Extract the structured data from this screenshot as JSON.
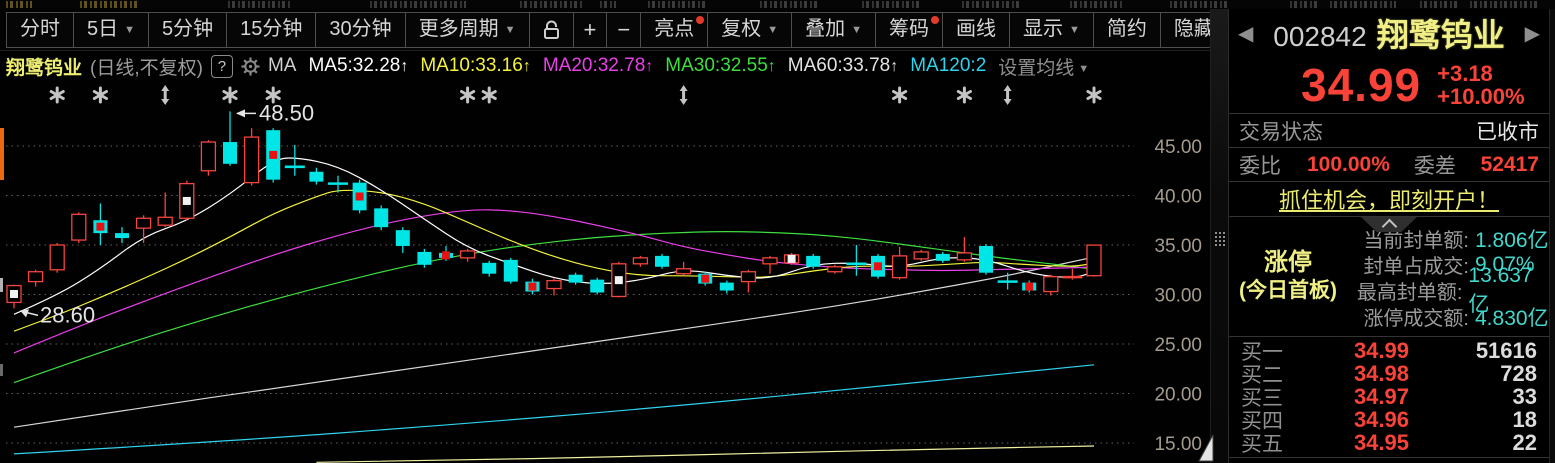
{
  "toolbar": {
    "buttons": [
      {
        "name": "intraday-button",
        "label": "分时"
      },
      {
        "name": "five-day-button",
        "label": "5日",
        "caret": true
      },
      {
        "name": "five-minute-button",
        "label": "5分钟"
      },
      {
        "name": "fifteen-minute-button",
        "label": "15分钟"
      },
      {
        "name": "thirty-minute-button",
        "label": "30分钟"
      },
      {
        "name": "more-periods-button",
        "label": "更多周期",
        "caret": true
      },
      {
        "gap": true
      },
      {
        "name": "lock-button",
        "icon": "lock"
      },
      {
        "name": "zoom-in-button",
        "label": "+",
        "sq": true
      },
      {
        "name": "zoom-out-button",
        "label": "−",
        "sq": true
      },
      {
        "name": "highlights-button",
        "label": "亮点",
        "dot": true
      },
      {
        "name": "adjust-price-button",
        "label": "复权",
        "caret": true
      },
      {
        "name": "overlay-button",
        "label": "叠加",
        "caret": true
      },
      {
        "name": "chip-distribution-button",
        "label": "筹码",
        "dot": true
      },
      {
        "name": "draw-line-button",
        "label": "画线"
      },
      {
        "name": "display-button",
        "label": "显示",
        "caret": true
      },
      {
        "name": "simple-mode-button",
        "label": "简约"
      },
      {
        "name": "hide-button",
        "label": "隐藏",
        "suffix": "▶▶"
      },
      {
        "name": "fullscreen-button",
        "icon": "fullscreen"
      }
    ]
  },
  "legend": {
    "stock": "翔鹭钨业",
    "mode": "(日线,不复权)",
    "help": "?",
    "ma_tag": "MA",
    "items": [
      {
        "name": "legend-ma5",
        "label": "MA5:32.28",
        "color": "#ffffff",
        "arrow": "↑"
      },
      {
        "name": "legend-ma10",
        "label": "MA10:33.16",
        "color": "#f3f33e",
        "arrow": "↑"
      },
      {
        "name": "legend-ma20",
        "label": "MA20:32.78",
        "color": "#e93fe9",
        "arrow": "↑"
      },
      {
        "name": "legend-ma30",
        "label": "MA30:32.55",
        "color": "#3ede3e",
        "arrow": "↑"
      },
      {
        "name": "legend-ma60",
        "label": "MA60:33.78",
        "color": "#e3e3e3",
        "arrow": "↑"
      },
      {
        "name": "legend-ma120",
        "label": "MA120:2",
        "color": "#2ed3ee",
        "arrow": ""
      }
    ],
    "settings": "设置均线"
  },
  "chart_data": {
    "type": "candlestick",
    "title": "翔鹭钨业 日线 (不复权)",
    "ylim": [
      12.5,
      50
    ],
    "y_ticks": [
      45,
      40,
      35,
      30,
      25,
      20,
      15
    ],
    "grid": "dotted-horizontal",
    "high_annotation": {
      "index": 10,
      "price": 48.5,
      "label": "48.50"
    },
    "low_annotation": {
      "index": 0,
      "price": 28.6,
      "label": "28.60"
    },
    "event_markers": {
      "asterisk": [
        2,
        4,
        10,
        12,
        21,
        22,
        41,
        44,
        50
      ],
      "updown": [
        7,
        31,
        46
      ]
    },
    "colors": {
      "up": "#f5453d",
      "down": "#00e5e5",
      "marker_red": "#e81010",
      "marker_white": "#f2f2f2",
      "axis": "#a59c8f",
      "grid": "#616161",
      "events": "#c4c4c4"
    },
    "candles": [
      [
        29.2,
        30.9,
        31.0,
        28.6,
        "w"
      ],
      [
        31.3,
        32.3,
        32.5,
        30.8,
        ""
      ],
      [
        32.5,
        35.0,
        35.2,
        32.2,
        ""
      ],
      [
        35.5,
        38.1,
        38.3,
        35.2,
        ""
      ],
      [
        37.5,
        36.2,
        39.2,
        35.0,
        "r"
      ],
      [
        36.2,
        35.7,
        36.8,
        35.2,
        ""
      ],
      [
        36.7,
        37.7,
        38.0,
        35.2,
        ""
      ],
      [
        37.0,
        37.8,
        40.3,
        36.8,
        ""
      ],
      [
        37.7,
        41.2,
        41.5,
        37.5,
        "w"
      ],
      [
        42.5,
        45.4,
        45.6,
        42.0,
        ""
      ],
      [
        45.4,
        43.2,
        48.5,
        43.0,
        ""
      ],
      [
        41.3,
        45.9,
        46.8,
        41.0,
        ""
      ],
      [
        46.6,
        41.6,
        46.8,
        41.3,
        "r"
      ],
      [
        43.0,
        42.8,
        45.1,
        42.0,
        ""
      ],
      [
        42.4,
        41.4,
        42.8,
        41.1,
        ""
      ],
      [
        41.3,
        41.1,
        42.0,
        40.3,
        ""
      ],
      [
        41.3,
        38.5,
        41.6,
        38.2,
        "r"
      ],
      [
        38.7,
        36.8,
        39.0,
        36.5,
        ""
      ],
      [
        36.5,
        34.9,
        36.8,
        34.2,
        ""
      ],
      [
        34.3,
        33.0,
        34.6,
        32.7,
        ""
      ],
      [
        34.2,
        33.7,
        34.9,
        33.4,
        "r"
      ],
      [
        33.7,
        34.4,
        34.6,
        33.3,
        ""
      ],
      [
        33.2,
        32.1,
        33.4,
        31.8,
        ""
      ],
      [
        33.5,
        31.3,
        33.7,
        31.1,
        ""
      ],
      [
        31.3,
        30.3,
        31.6,
        30.0,
        "r"
      ],
      [
        30.6,
        31.4,
        31.6,
        29.9,
        ""
      ],
      [
        32.0,
        31.2,
        32.2,
        31.0,
        ""
      ],
      [
        31.5,
        30.2,
        31.7,
        30.0,
        ""
      ],
      [
        29.8,
        33.1,
        33.3,
        29.7,
        "w"
      ],
      [
        33.1,
        33.7,
        33.9,
        32.8,
        ""
      ],
      [
        33.9,
        32.8,
        34.1,
        32.6,
        ""
      ],
      [
        32.1,
        32.6,
        33.3,
        31.9,
        ""
      ],
      [
        32.1,
        31.1,
        32.3,
        30.9,
        "r"
      ],
      [
        31.2,
        30.4,
        31.4,
        30.1,
        ""
      ],
      [
        31.3,
        32.3,
        32.5,
        30.2,
        ""
      ],
      [
        33.1,
        33.7,
        33.9,
        32.1,
        ""
      ],
      [
        33.2,
        34.0,
        34.2,
        33.0,
        "w"
      ],
      [
        33.9,
        32.8,
        34.1,
        32.6,
        ""
      ],
      [
        32.3,
        32.8,
        33.0,
        32.1,
        ""
      ],
      [
        33.2,
        33.0,
        35.0,
        31.9,
        ""
      ],
      [
        33.9,
        31.8,
        34.1,
        31.6,
        "r"
      ],
      [
        31.7,
        33.9,
        34.8,
        31.5,
        ""
      ],
      [
        33.6,
        34.3,
        34.5,
        33.4,
        ""
      ],
      [
        34.1,
        33.4,
        34.3,
        33.2,
        ""
      ],
      [
        33.5,
        34.2,
        35.8,
        33.3,
        ""
      ],
      [
        34.9,
        32.2,
        35.1,
        32.0,
        ""
      ],
      [
        31.4,
        31.2,
        32.2,
        30.5,
        ""
      ],
      [
        31.2,
        30.4,
        31.4,
        30.2,
        "r"
      ],
      [
        30.3,
        31.8,
        32.0,
        29.9,
        ""
      ],
      [
        31.7,
        31.81,
        32.6,
        31.5,
        ""
      ],
      [
        31.9,
        34.99,
        34.99,
        31.8,
        ""
      ]
    ],
    "ma_lines": [
      {
        "name": "MA250",
        "color": "#f0f0a2",
        "points": [
          [
            14,
            13.05
          ],
          [
            20,
            13.25
          ],
          [
            28,
            13.6
          ],
          [
            35,
            14.0
          ],
          [
            43,
            14.4
          ],
          [
            50,
            14.7
          ]
        ]
      },
      {
        "name": "MA120",
        "color": "#2ed3ee",
        "points": [
          [
            0,
            13.9
          ],
          [
            10,
            15.2
          ],
          [
            20,
            16.8
          ],
          [
            30,
            18.6
          ],
          [
            40,
            20.7
          ],
          [
            50,
            22.9
          ]
        ]
      },
      {
        "name": "MA60",
        "color": "#d9d9d9",
        "points": [
          [
            0,
            16.6
          ],
          [
            6,
            18.6
          ],
          [
            12,
            20.5
          ],
          [
            18,
            22.4
          ],
          [
            24,
            24.3
          ],
          [
            30,
            26.2
          ],
          [
            34,
            27.5
          ],
          [
            38,
            28.8
          ],
          [
            42,
            30.3
          ],
          [
            46,
            31.9
          ],
          [
            50,
            33.78
          ]
        ]
      },
      {
        "name": "MA30",
        "color": "#3ede3e",
        "points": [
          [
            0,
            21.1
          ],
          [
            3,
            23.4
          ],
          [
            6,
            25.6
          ],
          [
            9,
            27.6
          ],
          [
            12,
            29.5
          ],
          [
            15,
            31.2
          ],
          [
            18,
            32.8
          ],
          [
            21,
            34.1
          ],
          [
            24,
            35.1
          ],
          [
            27,
            35.8
          ],
          [
            30,
            36.2
          ],
          [
            33,
            36.4
          ],
          [
            36,
            36.2
          ],
          [
            38,
            35.9
          ],
          [
            40,
            35.4
          ],
          [
            42,
            34.8
          ],
          [
            44,
            34.2
          ],
          [
            46,
            33.6
          ],
          [
            48,
            33.1
          ],
          [
            50,
            32.55
          ]
        ]
      },
      {
        "name": "MA20",
        "color": "#e93fe9",
        "points": [
          [
            0,
            24.1
          ],
          [
            3,
            26.8
          ],
          [
            6,
            29.3
          ],
          [
            9,
            31.7
          ],
          [
            12,
            34.0
          ],
          [
            15,
            36.0
          ],
          [
            18,
            37.6
          ],
          [
            21,
            38.6
          ],
          [
            23,
            38.5
          ],
          [
            25,
            37.9
          ],
          [
            27,
            37.0
          ],
          [
            29,
            36.0
          ],
          [
            31,
            34.8
          ],
          [
            33,
            34.0
          ],
          [
            35,
            33.3
          ],
          [
            37,
            32.9
          ],
          [
            39,
            32.6
          ],
          [
            41,
            32.5
          ],
          [
            43,
            32.4
          ],
          [
            45,
            32.5
          ],
          [
            47,
            32.6
          ],
          [
            49,
            32.7
          ],
          [
            50,
            32.78
          ]
        ]
      },
      {
        "name": "MA10",
        "color": "#f3f33e",
        "points": [
          [
            0,
            26.3
          ],
          [
            2,
            27.9
          ],
          [
            4,
            29.7
          ],
          [
            6,
            31.6
          ],
          [
            8,
            33.6
          ],
          [
            10,
            35.8
          ],
          [
            12,
            38.2
          ],
          [
            14,
            39.9
          ],
          [
            15,
            40.6
          ],
          [
            17,
            40.4
          ],
          [
            19,
            39.2
          ],
          [
            21,
            37.3
          ],
          [
            23,
            35.4
          ],
          [
            25,
            33.8
          ],
          [
            27,
            32.6
          ],
          [
            29,
            31.9
          ],
          [
            31,
            31.9
          ],
          [
            33,
            31.8
          ],
          [
            35,
            31.7
          ],
          [
            37,
            32.4
          ],
          [
            39,
            32.9
          ],
          [
            41,
            32.8
          ],
          [
            43,
            33.0
          ],
          [
            45,
            33.3
          ],
          [
            47,
            33.0
          ],
          [
            49,
            32.8
          ],
          [
            50,
            33.16
          ]
        ]
      },
      {
        "name": "MA5",
        "color": "#ffffff",
        "points": [
          [
            0,
            28.0
          ],
          [
            2,
            29.9
          ],
          [
            4,
            32.6
          ],
          [
            6,
            35.9
          ],
          [
            8,
            37.4
          ],
          [
            10,
            40.1
          ],
          [
            12,
            43.6
          ],
          [
            13,
            43.9
          ],
          [
            15,
            43.0
          ],
          [
            17,
            40.6
          ],
          [
            19,
            37.6
          ],
          [
            21,
            34.7
          ],
          [
            23,
            33.1
          ],
          [
            25,
            31.6
          ],
          [
            27,
            31.0
          ],
          [
            29,
            31.4
          ],
          [
            31,
            32.6
          ],
          [
            33,
            31.9
          ],
          [
            35,
            31.5
          ],
          [
            37,
            33.1
          ],
          [
            39,
            33.2
          ],
          [
            41,
            32.7
          ],
          [
            43,
            33.8
          ],
          [
            45,
            33.6
          ],
          [
            47,
            32.1
          ],
          [
            49,
            31.6
          ],
          [
            50,
            32.28
          ]
        ]
      }
    ]
  },
  "quote_panel": {
    "prev_arrow": "◀",
    "next_arrow": "▶",
    "code": "002842",
    "name": "翔鹭钨业",
    "price": "34.99",
    "change": "+3.18",
    "change_pct": "+10.00%",
    "trade_status_label": "交易状态",
    "trade_status_value": "已收市",
    "weibi_label": "委比",
    "weibi_value": "100.00%",
    "weicha_label": "委差",
    "weicha_value": "52417",
    "promo_link": "抓住机会，即刻开户！",
    "limit_up": {
      "title": "涨停",
      "subtitle": "(今日首板)",
      "stats": [
        {
          "label": "当前封单额:",
          "value": "1.806亿"
        },
        {
          "label": "封单占成交:",
          "value": "9.07%"
        },
        {
          "label": "最高封单额:",
          "value": "13.637亿"
        },
        {
          "label": "涨停成交额:",
          "value": "4.830亿"
        }
      ]
    },
    "bids": [
      {
        "label": "买一",
        "price": "34.99",
        "volume": "51616"
      },
      {
        "label": "买二",
        "price": "34.98",
        "volume": "728"
      },
      {
        "label": "买三",
        "price": "34.97",
        "volume": "33"
      },
      {
        "label": "买四",
        "price": "34.96",
        "volume": "18"
      },
      {
        "label": "买五",
        "price": "34.95",
        "volume": "22"
      }
    ]
  }
}
